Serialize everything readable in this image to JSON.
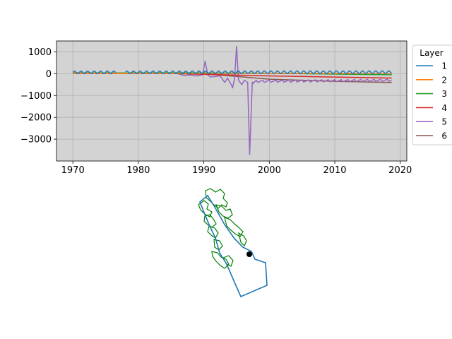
{
  "chart_data": [
    {
      "type": "line",
      "title": "",
      "xlabel": "",
      "ylabel": "",
      "xlim": [
        1967.5,
        2021
      ],
      "ylim": [
        -4000,
        1500
      ],
      "grid": true,
      "x_ticks": [
        1970,
        1980,
        1990,
        2000,
        2010,
        2020
      ],
      "y_ticks": [
        -3000,
        -2000,
        -1000,
        0,
        1000
      ],
      "x_tick_labels": [
        "1970",
        "1980",
        "1990",
        "2000",
        "2010",
        "2020"
      ],
      "y_tick_labels": [
        "−3000",
        "−2000",
        "−1000",
        "0",
        "1000"
      ],
      "legend": {
        "title": "Layer",
        "placement": "outside-right",
        "entries": [
          {
            "label": "1",
            "color": "#1f77b4"
          },
          {
            "label": "2",
            "color": "#ff7f0e"
          },
          {
            "label": "3",
            "color": "#2ca02c"
          },
          {
            "label": "4",
            "color": "#d62728"
          },
          {
            "label": "5",
            "color": "#9467bd"
          },
          {
            "label": "6",
            "color": "#8c564b"
          }
        ]
      },
      "series": [
        {
          "name": "1",
          "color": "#1f77b4",
          "base_start": 60,
          "base_end": 70,
          "seasonal_amplitude": 60,
          "start": 1970,
          "end": 2018.7,
          "gap": [
            1976.5,
            1978
          ]
        },
        {
          "name": "2",
          "color": "#ff7f0e",
          "points": [
            [
              1970,
              20
            ],
            [
              2018.7,
              10
            ]
          ]
        },
        {
          "name": "3",
          "color": "#2ca02c",
          "points": [
            [
              1970,
              30
            ],
            [
              1985,
              40
            ],
            [
              2000,
              20
            ],
            [
              2018.7,
              -50
            ]
          ]
        },
        {
          "name": "4",
          "color": "#d62728",
          "points": [
            [
              1970,
              10
            ],
            [
              1985,
              10
            ],
            [
              2000,
              -100
            ],
            [
              2018.7,
              -200
            ]
          ]
        },
        {
          "name": "5",
          "color": "#9467bd",
          "points": [
            [
              1986,
              0
            ],
            [
              1987,
              -80
            ],
            [
              1988,
              -60
            ],
            [
              1989,
              -100
            ],
            [
              1989.8,
              -50
            ],
            [
              1990.2,
              570
            ],
            [
              1990.6,
              -50
            ],
            [
              1991,
              -150
            ],
            [
              1992.5,
              -100
            ],
            [
              1993.2,
              -400
            ],
            [
              1993.6,
              -200
            ],
            [
              1994.1,
              -450
            ],
            [
              1994.4,
              -650
            ],
            [
              1994.7,
              -200
            ],
            [
              1995,
              1250
            ],
            [
              1995.3,
              -300
            ],
            [
              1995.8,
              -500
            ],
            [
              1996.2,
              -300
            ],
            [
              1996.7,
              -400
            ],
            [
              1997,
              -3700
            ],
            [
              1997.4,
              -400
            ],
            [
              1998,
              -300
            ],
            [
              2018.7,
              -250
            ]
          ],
          "oscillation_after": 1997.5,
          "oscillation_amplitude": 100
        },
        {
          "name": "6",
          "color": "#8c564b",
          "points": [
            [
              1970,
              40
            ],
            [
              1980,
              30
            ],
            [
              1990,
              0
            ],
            [
              2000,
              -250
            ],
            [
              2010,
              -350
            ],
            [
              2018.7,
              -400
            ]
          ]
        }
      ]
    },
    {
      "type": "map",
      "title": "",
      "features": [
        {
          "name": "boundary",
          "color": "#1f77b4"
        },
        {
          "name": "watershed-outlines",
          "color": "#008000"
        },
        {
          "name": "point-marker",
          "color": "#000000"
        }
      ]
    }
  ]
}
